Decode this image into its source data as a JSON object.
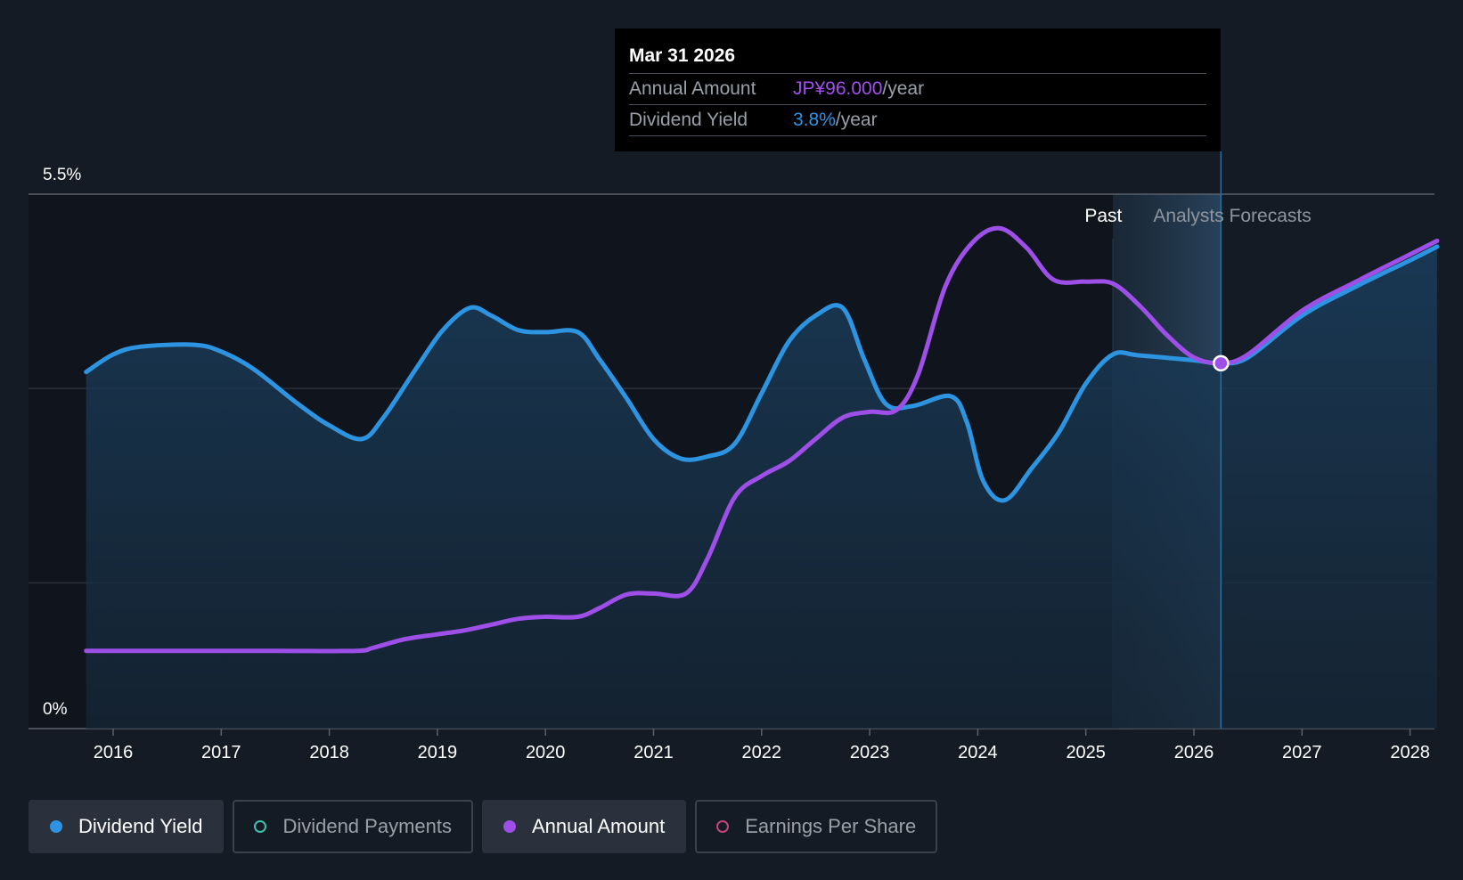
{
  "chart_data": {
    "type": "line",
    "x_ticks": [
      "2016",
      "2017",
      "2018",
      "2019",
      "2020",
      "2021",
      "2022",
      "2023",
      "2024",
      "2025",
      "2026",
      "2027",
      "2028"
    ],
    "y_labels": {
      "top": "5.5%",
      "bottom": "0%"
    },
    "ylim": [
      0,
      5.5
    ],
    "zones": {
      "past": "Past",
      "forecast": "Analysts Forecasts"
    },
    "past_end": "2025.25",
    "forecast_start": "2025.5",
    "cursor": "2026.25",
    "series": [
      {
        "name": "Dividend Yield",
        "color": "#2d94e2",
        "points": [
          [
            2015.75,
            3.67
          ],
          [
            2016.0,
            3.85
          ],
          [
            2016.25,
            3.93
          ],
          [
            2016.75,
            3.95
          ],
          [
            2017.0,
            3.88
          ],
          [
            2017.3,
            3.7
          ],
          [
            2017.7,
            3.35
          ],
          [
            2018.0,
            3.12
          ],
          [
            2018.3,
            2.98
          ],
          [
            2018.5,
            3.2
          ],
          [
            2018.8,
            3.7
          ],
          [
            2019.05,
            4.1
          ],
          [
            2019.3,
            4.33
          ],
          [
            2019.5,
            4.25
          ],
          [
            2019.75,
            4.1
          ],
          [
            2020.0,
            4.08
          ],
          [
            2020.3,
            4.08
          ],
          [
            2020.5,
            3.8
          ],
          [
            2020.75,
            3.4
          ],
          [
            2021.0,
            2.98
          ],
          [
            2021.25,
            2.78
          ],
          [
            2021.5,
            2.8
          ],
          [
            2021.75,
            2.93
          ],
          [
            2022.0,
            3.45
          ],
          [
            2022.25,
            3.98
          ],
          [
            2022.5,
            4.25
          ],
          [
            2022.75,
            4.33
          ],
          [
            2022.95,
            3.8
          ],
          [
            2023.15,
            3.34
          ],
          [
            2023.4,
            3.32
          ],
          [
            2023.75,
            3.42
          ],
          [
            2023.9,
            3.15
          ],
          [
            2024.05,
            2.55
          ],
          [
            2024.25,
            2.35
          ],
          [
            2024.5,
            2.68
          ],
          [
            2024.75,
            3.05
          ],
          [
            2025.0,
            3.55
          ],
          [
            2025.25,
            3.85
          ],
          [
            2025.5,
            3.84
          ],
          [
            2026.0,
            3.79
          ],
          [
            2026.25,
            3.76
          ],
          [
            2026.5,
            3.82
          ],
          [
            2027.0,
            4.25
          ],
          [
            2027.5,
            4.55
          ],
          [
            2028.0,
            4.82
          ],
          [
            2028.25,
            4.96
          ]
        ]
      },
      {
        "name": "Annual Amount",
        "color": "#9d4fe8",
        "points": [
          [
            2015.75,
            0.8
          ],
          [
            2016.5,
            0.8
          ],
          [
            2017.5,
            0.8
          ],
          [
            2018.25,
            0.8
          ],
          [
            2018.4,
            0.83
          ],
          [
            2018.7,
            0.92
          ],
          [
            2019.0,
            0.97
          ],
          [
            2019.25,
            1.01
          ],
          [
            2019.5,
            1.07
          ],
          [
            2019.75,
            1.13
          ],
          [
            2020.0,
            1.15
          ],
          [
            2020.3,
            1.15
          ],
          [
            2020.5,
            1.24
          ],
          [
            2020.75,
            1.38
          ],
          [
            2021.0,
            1.39
          ],
          [
            2021.3,
            1.39
          ],
          [
            2021.5,
            1.75
          ],
          [
            2021.75,
            2.38
          ],
          [
            2022.0,
            2.6
          ],
          [
            2022.25,
            2.75
          ],
          [
            2022.5,
            2.98
          ],
          [
            2022.75,
            3.2
          ],
          [
            2023.0,
            3.26
          ],
          [
            2023.25,
            3.28
          ],
          [
            2023.45,
            3.65
          ],
          [
            2023.7,
            4.55
          ],
          [
            2023.95,
            5.0
          ],
          [
            2024.2,
            5.15
          ],
          [
            2024.45,
            4.95
          ],
          [
            2024.7,
            4.62
          ],
          [
            2025.0,
            4.6
          ],
          [
            2025.25,
            4.58
          ],
          [
            2025.5,
            4.35
          ],
          [
            2025.75,
            4.05
          ],
          [
            2026.0,
            3.82
          ],
          [
            2026.25,
            3.76
          ],
          [
            2026.5,
            3.85
          ],
          [
            2027.0,
            4.3
          ],
          [
            2027.5,
            4.6
          ],
          [
            2028.0,
            4.88
          ],
          [
            2028.25,
            5.02
          ]
        ]
      }
    ]
  },
  "tooltip": {
    "date": "Mar 31 2026",
    "rows": [
      {
        "label": "Annual Amount",
        "value": "JP¥96.000",
        "unit": "/year",
        "color": "#a24ff0"
      },
      {
        "label": "Dividend Yield",
        "value": "3.8%",
        "unit": "/year",
        "color": "#2d94e2"
      }
    ]
  },
  "legend": [
    {
      "label": "Dividend Yield",
      "active": true,
      "color": "#2d94e2",
      "filled": true
    },
    {
      "label": "Dividend Payments",
      "active": false,
      "color": "#3fbfae",
      "filled": false
    },
    {
      "label": "Annual Amount",
      "active": true,
      "color": "#9d4fe8",
      "filled": true
    },
    {
      "label": "Earnings Per Share",
      "active": false,
      "color": "#c2457a",
      "filled": false
    }
  ]
}
